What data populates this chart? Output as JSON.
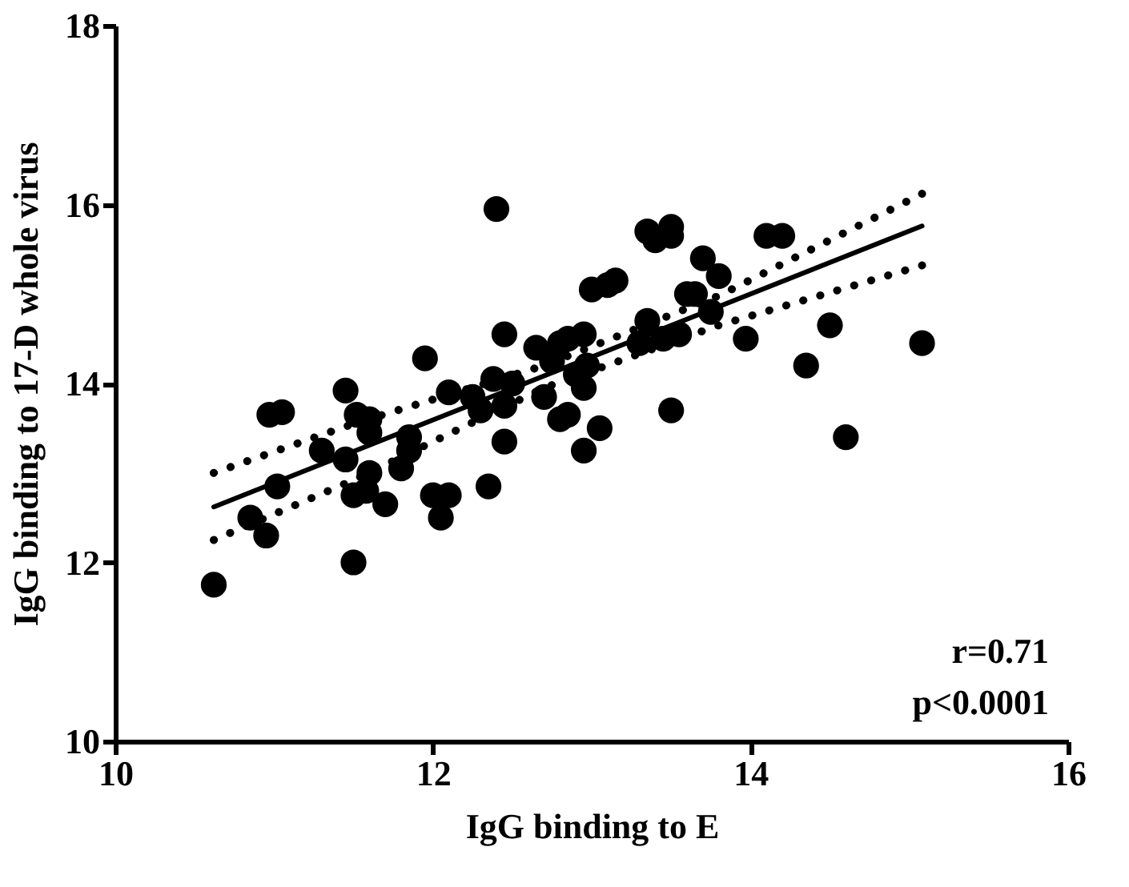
{
  "chart_data": {
    "type": "scatter",
    "xlabel": "IgG binding to E",
    "ylabel": "IgG binding to 17-D whole virus",
    "xlim": [
      10,
      16
    ],
    "xticks": [
      10,
      12,
      14,
      16
    ],
    "ylim": [
      10,
      18
    ],
    "yticks": [
      10,
      12,
      14,
      16,
      18
    ],
    "grid": false,
    "annotations": [
      "r=0.71",
      "p<0.0001"
    ],
    "series": [
      {
        "type": "scatter",
        "color": "#000000",
        "marker": "circle",
        "x": [
          10.62,
          10.85,
          10.95,
          10.97,
          11.05,
          11.02,
          11.3,
          11.45,
          11.45,
          11.5,
          11.5,
          11.52,
          11.6,
          11.6,
          11.58,
          11.6,
          11.7,
          11.8,
          11.85,
          11.85,
          11.95,
          12.0,
          12.05,
          12.1,
          12.1,
          12.25,
          12.3,
          12.35,
          12.38,
          12.4,
          12.45,
          12.45,
          12.45,
          12.5,
          12.65,
          12.7,
          12.75,
          12.8,
          12.8,
          12.85,
          12.85,
          12.9,
          12.95,
          12.95,
          12.97,
          12.95,
          13.0,
          13.05,
          13.1,
          13.15,
          13.3,
          13.35,
          13.35,
          13.4,
          13.45,
          13.5,
          13.5,
          13.55,
          13.5,
          13.6,
          13.65,
          13.7,
          13.75,
          13.8,
          13.97,
          14.1,
          14.2,
          14.35,
          14.5,
          14.6,
          15.08
        ],
        "values": [
          11.75,
          12.5,
          12.3,
          13.65,
          13.68,
          12.85,
          13.25,
          13.92,
          13.15,
          12.0,
          12.75,
          13.65,
          13.6,
          13.45,
          12.8,
          13.0,
          12.65,
          13.05,
          13.25,
          13.4,
          14.28,
          12.75,
          12.5,
          13.9,
          12.75,
          13.85,
          13.7,
          12.85,
          14.05,
          15.95,
          14.55,
          13.75,
          13.35,
          14.0,
          14.4,
          13.85,
          14.25,
          13.6,
          14.45,
          14.5,
          13.65,
          14.1,
          14.55,
          13.95,
          14.2,
          13.25,
          15.05,
          13.5,
          15.1,
          15.15,
          14.45,
          14.7,
          15.7,
          15.6,
          14.5,
          15.65,
          15.75,
          14.55,
          13.7,
          15.0,
          15.0,
          15.4,
          14.8,
          15.2,
          14.5,
          15.65,
          15.65,
          14.2,
          14.65,
          13.4,
          14.45
        ]
      },
      {
        "type": "line",
        "color": "#000000",
        "line_style": "dotted",
        "x": [
          10.62,
          11.5,
          12.7,
          13.8,
          15.08
        ],
        "values": [
          13.0,
          13.55,
          14.2,
          14.98,
          16.12
        ]
      },
      {
        "type": "line",
        "color": "#000000",
        "line_style": "dotted",
        "x": [
          10.62,
          11.5,
          12.7,
          13.8,
          15.08
        ],
        "values": [
          12.25,
          12.92,
          13.95,
          14.65,
          15.32
        ]
      },
      {
        "type": "line",
        "color": "#000000",
        "line_style": "solid",
        "x": [
          10.62,
          15.08
        ],
        "values": [
          12.62,
          15.76
        ]
      }
    ]
  }
}
